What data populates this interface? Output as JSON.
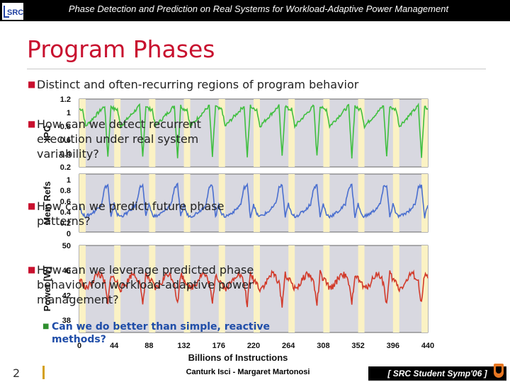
{
  "header": {
    "title": "Phase Detection and Prediction on Real Systems for Workload-Adaptive Power Management",
    "logo_text": "SRC"
  },
  "slide": {
    "title": "Program Phases",
    "bullets": [
      "Distinct and often-recurring regions of program behavior",
      "How can we detect recurrent execution under real system variability?",
      "How can we predict future phase patterns?",
      "How can we leverage predicted phase behavior for workload-adaptive power management?"
    ],
    "sub_bullet": "Can we do better than simple, reactive methods?"
  },
  "footer": {
    "page_number": "2",
    "authors": "Canturk Isci - Margaret Martonosi",
    "event": "[ SRC Student Symp'06 ]"
  },
  "colors": {
    "title_red": "#c8102e",
    "ipc_line": "#3fbf3f",
    "memrefs_line": "#4a6fcf",
    "power_line": "#d23a2a",
    "phase_stripe": "#fbf2c4",
    "panel_bg": "#d8d8e0",
    "sub_bullet_blue": "#1f4da8"
  },
  "chart_data": {
    "type": "line",
    "xlabel": "Billions of Instructions",
    "x_ticks": [
      "0",
      "44",
      "88",
      "132",
      "176",
      "220",
      "264",
      "308",
      "352",
      "396",
      "440"
    ],
    "xlim": [
      0,
      440
    ],
    "panels": [
      {
        "ylabel": "IPC",
        "y_ticks": [
          "0.2",
          "0.4",
          "0.6",
          "0.8",
          "1",
          "1.2"
        ],
        "ylim": [
          0.2,
          1.2
        ],
        "color": "#3fbf3f",
        "pattern": [
          1.05,
          1.05,
          0.8,
          0.85,
          0.9,
          0.95,
          1.0,
          1.05,
          1.1,
          0.35,
          1.1,
          1.05
        ],
        "noise": 0.025
      },
      {
        "ylabel": "Mem Refs",
        "y_ticks": [
          "0",
          "0.2",
          "0.4",
          "0.6",
          "0.8",
          "1"
        ],
        "ylim": [
          0,
          1
        ],
        "color": "#4a6fcf",
        "pattern": [
          0.55,
          0.35,
          0.32,
          0.34,
          0.38,
          0.42,
          0.48,
          0.55,
          0.85,
          0.9,
          0.3,
          0.55
        ],
        "noise": 0.03
      },
      {
        "ylabel": "Power [W]",
        "y_ticks": [
          "38",
          "42",
          "46",
          "50"
        ],
        "ylim": [
          36,
          50
        ],
        "color": "#d23a2a",
        "pattern": [
          44.5,
          44.0,
          43.0,
          43.5,
          44.0,
          45.0,
          45.5,
          45.0,
          44.0,
          40.5,
          45.5,
          44.5
        ],
        "noise": 0.55
      }
    ],
    "phase_period": 44,
    "phase_stripes": [
      [
        0,
        8
      ],
      [
        44,
        52
      ],
      [
        88,
        96
      ],
      [
        132,
        140
      ],
      [
        176,
        184
      ],
      [
        220,
        228
      ],
      [
        264,
        272
      ],
      [
        308,
        316
      ],
      [
        352,
        360
      ],
      [
        396,
        404
      ],
      [
        432,
        440
      ]
    ]
  }
}
